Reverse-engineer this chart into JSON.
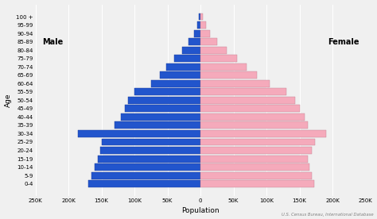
{
  "age_groups": [
    "0-4",
    "5-9",
    "10-14",
    "15-19",
    "20-24",
    "25-29",
    "30-34",
    "35-39",
    "40-44",
    "45-49",
    "50-54",
    "55-59",
    "60-64",
    "65-69",
    "70-74",
    "75-79",
    "80-84",
    "85-89",
    "90-94",
    "95-99",
    "100 +"
  ],
  "male": [
    170000,
    165000,
    160000,
    155000,
    152000,
    150000,
    185000,
    130000,
    120000,
    115000,
    110000,
    100000,
    75000,
    62000,
    52000,
    40000,
    28000,
    18000,
    10000,
    5000,
    2000
  ],
  "female": [
    172000,
    168000,
    165000,
    163000,
    168000,
    173000,
    190000,
    162000,
    158000,
    150000,
    143000,
    130000,
    105000,
    85000,
    70000,
    55000,
    40000,
    25000,
    15000,
    8000,
    3000
  ],
  "male_color": "#2255CC",
  "female_color": "#F5AABB",
  "male_edge_color": "#1a3a99",
  "female_edge_color": "#c08090",
  "background_color": "#f0f0f0",
  "xlabel": "Population",
  "ylabel": "Age",
  "xlim": 250000,
  "xtick_labels": [
    "250K",
    "200K",
    "150K",
    "100K",
    "50K",
    "0",
    "50K",
    "100K",
    "150K",
    "200K",
    "250K"
  ],
  "male_label": "Male",
  "female_label": "Female",
  "source_text": "U.S. Census Bureau, International Database",
  "bar_height": 0.85
}
